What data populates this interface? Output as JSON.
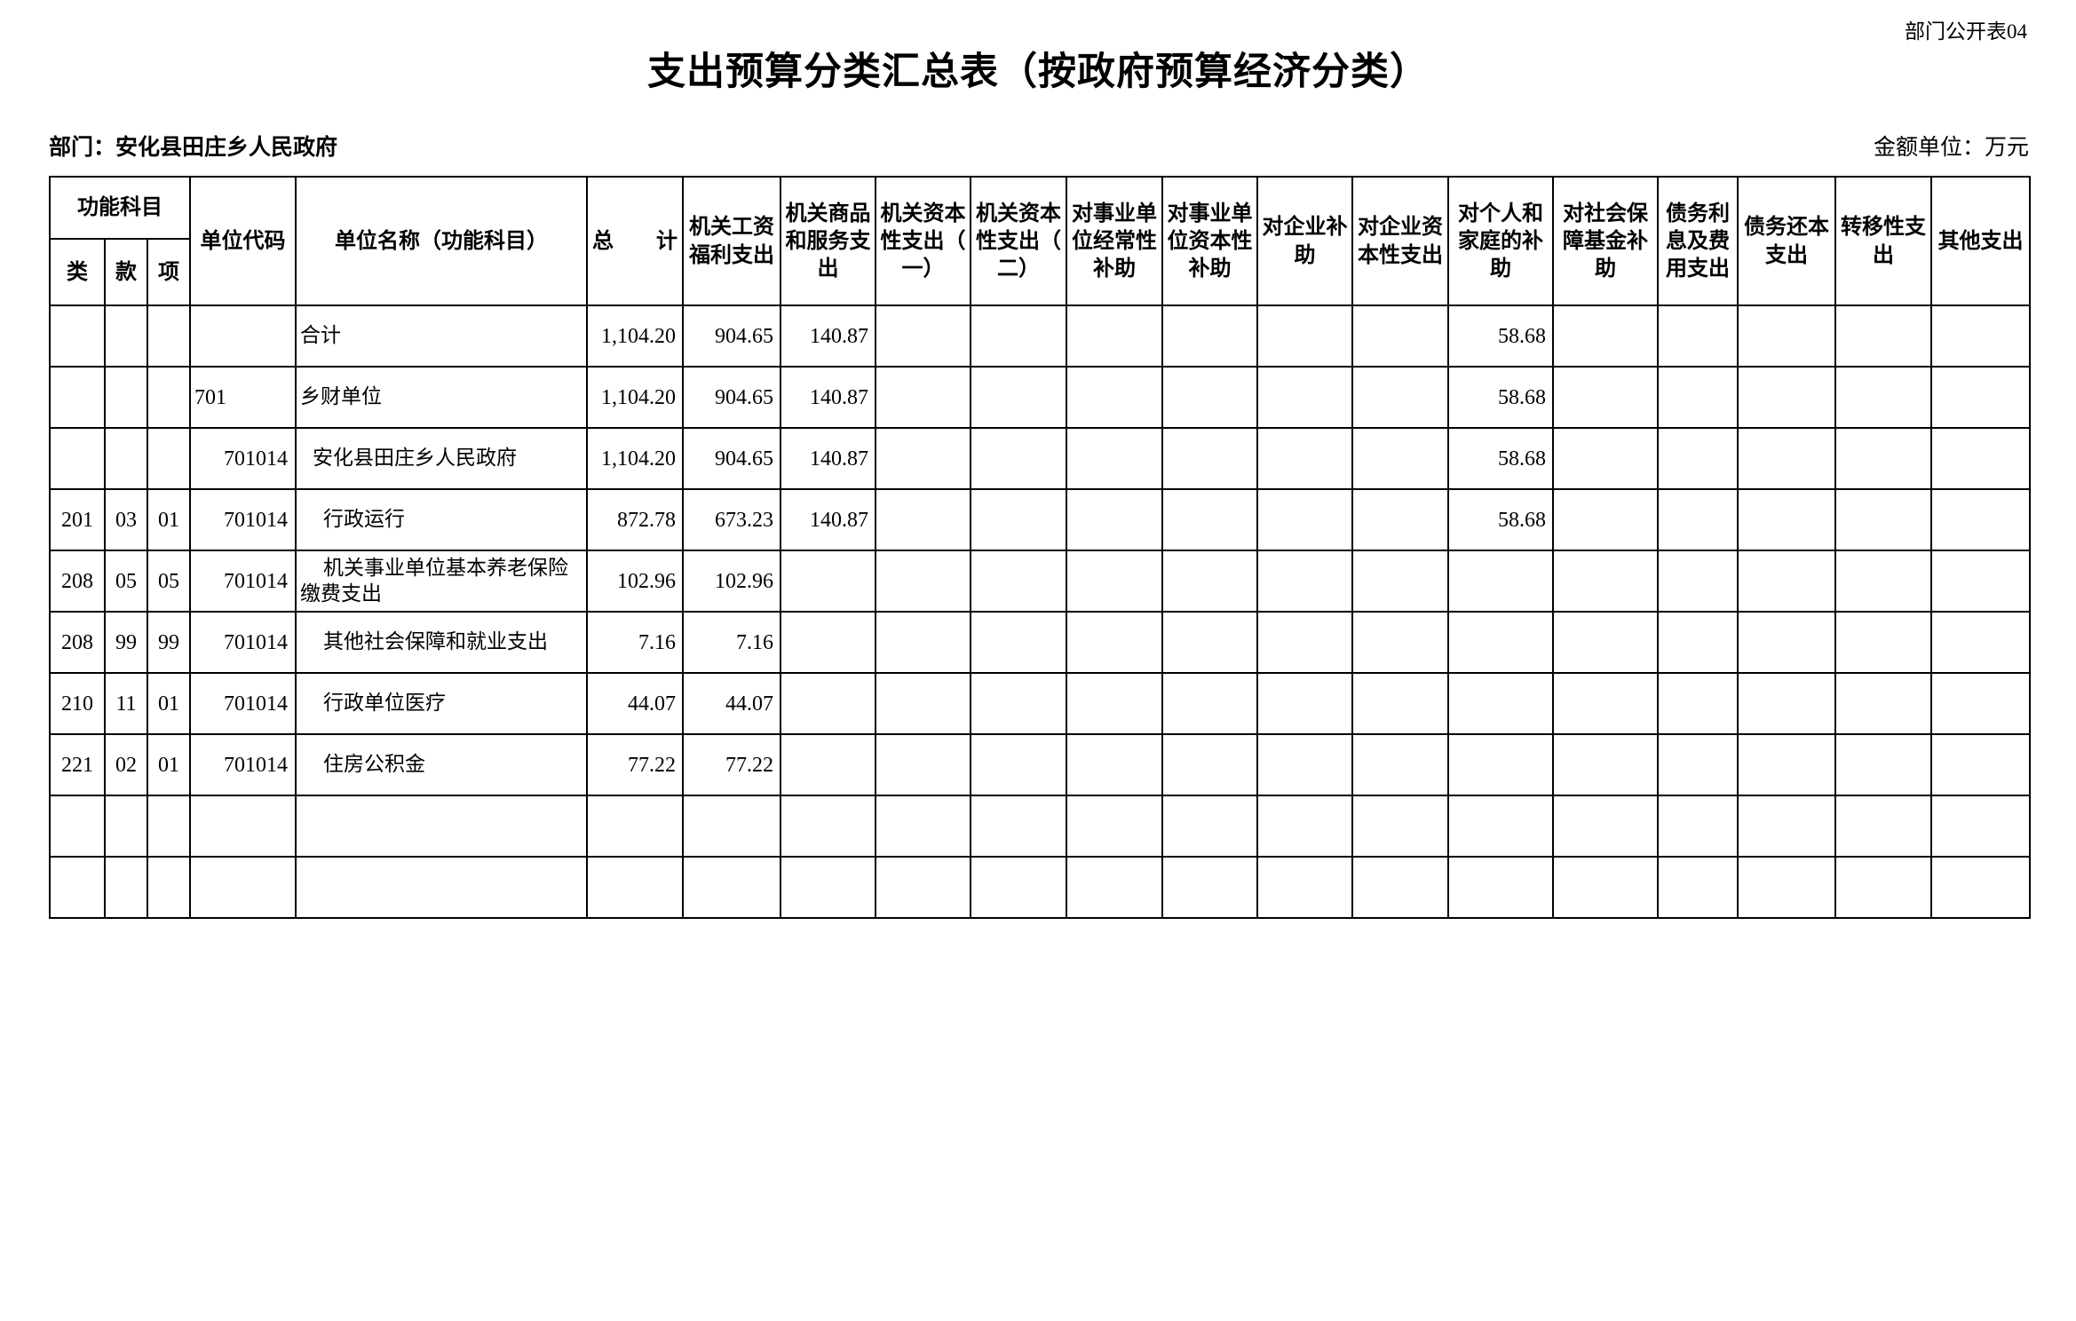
{
  "meta": {
    "sheet_label": "部门公开表04",
    "title": "支出预算分类汇总表（按政府预算经济分类）",
    "department": "部门：安化县田庄乡人民政府",
    "unit_note": "金额单位：万元",
    "colors": {
      "background": "#ffffff",
      "border": "#000000",
      "text": "#000000"
    }
  },
  "table": {
    "header": {
      "func_group": "功能科目",
      "func_cols": [
        "类",
        "款",
        "项"
      ],
      "unit_code": "单位代码",
      "unit_name": "单位名称（功能科目）",
      "value_cols": [
        "总　　计",
        "机关工资福利支出",
        "机关商品和服务支出",
        "机关资本性支出（一）",
        "机关资本性支出（二）",
        "对事业单位经常性补助",
        "对事业单位资本性补助",
        "对企业补助",
        "对企业资本性支出",
        "对个人和家庭的补助",
        "对社会保障基金补助",
        "债务利息及费用支出",
        "债务还本支出",
        "转移性支出",
        "其他支出"
      ]
    },
    "rows": [
      {
        "lei": "",
        "kuan": "",
        "xiang": "",
        "code": "",
        "code_align": "right",
        "name": "合计",
        "indent": 0,
        "values": [
          "1,104.20",
          "904.65",
          "140.87",
          "",
          "",
          "",
          "",
          "",
          "",
          "58.68",
          "",
          "",
          "",
          "",
          ""
        ]
      },
      {
        "lei": "",
        "kuan": "",
        "xiang": "",
        "code": "701",
        "code_align": "left",
        "name": "乡财单位",
        "indent": 0,
        "values": [
          "1,104.20",
          "904.65",
          "140.87",
          "",
          "",
          "",
          "",
          "",
          "",
          "58.68",
          "",
          "",
          "",
          "",
          ""
        ]
      },
      {
        "lei": "",
        "kuan": "",
        "xiang": "",
        "code": "701014",
        "code_align": "right",
        "name": "安化县田庄乡人民政府",
        "indent": 1,
        "values": [
          "1,104.20",
          "904.65",
          "140.87",
          "",
          "",
          "",
          "",
          "",
          "",
          "58.68",
          "",
          "",
          "",
          "",
          ""
        ]
      },
      {
        "lei": "201",
        "kuan": "03",
        "xiang": "01",
        "code": "701014",
        "code_align": "right",
        "name": "行政运行",
        "indent": 2,
        "values": [
          "872.78",
          "673.23",
          "140.87",
          "",
          "",
          "",
          "",
          "",
          "",
          "58.68",
          "",
          "",
          "",
          "",
          ""
        ]
      },
      {
        "lei": "208",
        "kuan": "05",
        "xiang": "05",
        "code": "701014",
        "code_align": "right",
        "name": "机关事业单位基本养老保险缴费支出",
        "indent": 2,
        "values": [
          "102.96",
          "102.96",
          "",
          "",
          "",
          "",
          "",
          "",
          "",
          "",
          "",
          "",
          "",
          "",
          ""
        ]
      },
      {
        "lei": "208",
        "kuan": "99",
        "xiang": "99",
        "code": "701014",
        "code_align": "right",
        "name": "其他社会保障和就业支出",
        "indent": 2,
        "values": [
          "7.16",
          "7.16",
          "",
          "",
          "",
          "",
          "",
          "",
          "",
          "",
          "",
          "",
          "",
          "",
          ""
        ]
      },
      {
        "lei": "210",
        "kuan": "11",
        "xiang": "01",
        "code": "701014",
        "code_align": "right",
        "name": "行政单位医疗",
        "indent": 2,
        "values": [
          "44.07",
          "44.07",
          "",
          "",
          "",
          "",
          "",
          "",
          "",
          "",
          "",
          "",
          "",
          "",
          ""
        ]
      },
      {
        "lei": "221",
        "kuan": "02",
        "xiang": "01",
        "code": "701014",
        "code_align": "right",
        "name": "住房公积金",
        "indent": 2,
        "values": [
          "77.22",
          "77.22",
          "",
          "",
          "",
          "",
          "",
          "",
          "",
          "",
          "",
          "",
          "",
          "",
          ""
        ]
      },
      {
        "lei": "",
        "kuan": "",
        "xiang": "",
        "code": "",
        "code_align": "right",
        "name": "",
        "indent": 0,
        "values": [
          "",
          "",
          "",
          "",
          "",
          "",
          "",
          "",
          "",
          "",
          "",
          "",
          "",
          "",
          ""
        ]
      },
      {
        "lei": "",
        "kuan": "",
        "xiang": "",
        "code": "",
        "code_align": "right",
        "name": "",
        "indent": 0,
        "values": [
          "",
          "",
          "",
          "",
          "",
          "",
          "",
          "",
          "",
          "",
          "",
          "",
          "",
          "",
          ""
        ]
      }
    ]
  }
}
